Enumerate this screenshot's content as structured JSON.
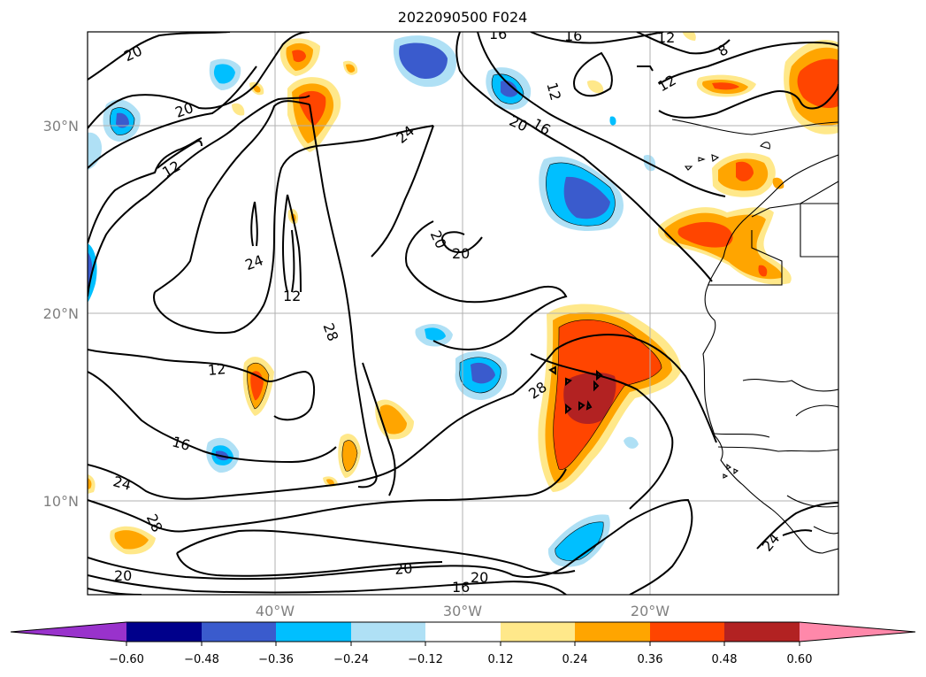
{
  "title": "2022090500 F024",
  "lat_labels": [
    "30°N",
    "20°N",
    "10°N"
  ],
  "lon_labels": [
    "40°W",
    "30°W",
    "20°W"
  ],
  "contour_labels": [
    "20",
    "16",
    "16",
    "12",
    "8",
    "20",
    "12",
    "12",
    "24",
    "20",
    "16",
    "12",
    "24",
    "12",
    "20",
    "20",
    "12",
    "28",
    "16",
    "24",
    "28",
    "28",
    "24",
    "20",
    "16",
    "20",
    "20"
  ],
  "colorbar": {
    "ticks": [
      "−0.60",
      "−0.48",
      "−0.36",
      "−0.24",
      "−0.12",
      "0.12",
      "0.24",
      "0.36",
      "0.48",
      "0.60"
    ],
    "colors": [
      "#9932cc",
      "#00008b",
      "#3a5bcd",
      "#00bfff",
      "#afe0f5",
      "#ffffff",
      "#ffe88a",
      "#ffa500",
      "#ff4500",
      "#b22222",
      "#ff88aa"
    ]
  },
  "colors": {
    "neg_weak": "#afe0f5",
    "neg_mid": "#00bfff",
    "neg_strong": "#3a5bcd",
    "neg_max": "#00008b",
    "pos_weak": "#ffe88a",
    "pos_mid": "#ffa500",
    "pos_strong": "#ff4500",
    "pos_max": "#b22222"
  }
}
